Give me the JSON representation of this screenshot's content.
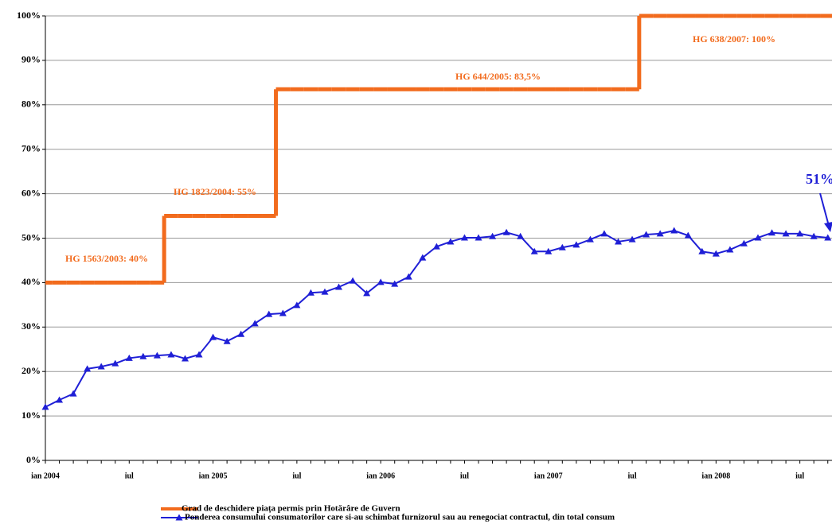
{
  "chart_data": {
    "type": "line",
    "categories": [
      "ian 2004",
      null,
      null,
      null,
      null,
      null,
      "iul",
      null,
      null,
      null,
      null,
      null,
      "ian 2005",
      null,
      null,
      null,
      null,
      null,
      "iul",
      null,
      null,
      null,
      null,
      null,
      "ian 2006",
      null,
      null,
      null,
      null,
      null,
      "iul",
      null,
      null,
      null,
      null,
      null,
      "ian 2007",
      null,
      null,
      null,
      null,
      null,
      "iul",
      null,
      null,
      null,
      null,
      null,
      "ian 2008",
      null,
      null,
      null,
      null,
      null,
      "iul",
      null,
      null
    ],
    "series": [
      {
        "name": "Grad de deschidere piața permis prin Hotărâre de Guvern",
        "color": "#f26b1d",
        "step": true,
        "values": [
          40,
          40,
          40,
          40,
          40,
          40,
          40,
          40,
          40,
          55,
          55,
          55,
          55,
          55,
          55,
          55,
          55,
          83.5,
          83.5,
          83.5,
          83.5,
          83.5,
          83.5,
          83.5,
          83.5,
          83.5,
          83.5,
          83.5,
          83.5,
          83.5,
          83.5,
          83.5,
          83.5,
          83.5,
          83.5,
          83.5,
          83.5,
          83.5,
          83.5,
          83.5,
          83.5,
          83.5,
          83.5,
          100,
          100,
          100,
          100,
          100,
          100,
          100,
          100,
          100,
          100,
          100,
          100,
          100,
          100
        ]
      },
      {
        "name": "Ponderea consumului consumatorilor care si-au schimbat furnizorul sau au renegociat contractul, din total consum",
        "color": "#1f1fd6",
        "marker": "triangle",
        "values": [
          12,
          13.6,
          15,
          20.6,
          21.1,
          21.8,
          23,
          23.4,
          23.6,
          23.8,
          22.9,
          23.8,
          27.7,
          26.8,
          28.4,
          30.8,
          32.9,
          33.1,
          34.9,
          37.7,
          37.9,
          39,
          40.4,
          37.6,
          40.1,
          39.7,
          41.3,
          45.6,
          48.1,
          49.2,
          50.1,
          50.1,
          50.4,
          51.3,
          50.4,
          47,
          47,
          47.9,
          48.5,
          49.7,
          51,
          49.2,
          49.7,
          50.8,
          51,
          51.7,
          50.6,
          47,
          46.5,
          47.4,
          48.8,
          50.1,
          51.2,
          51,
          51,
          50.4,
          50.1
        ]
      }
    ],
    "ylim": [
      0,
      100
    ],
    "yticks": [
      {
        "value": 0,
        "label": "0%"
      },
      {
        "value": 10,
        "label": "10%"
      },
      {
        "value": 20,
        "label": "20%"
      },
      {
        "value": 30,
        "label": "30%"
      },
      {
        "value": 40,
        "label": "40%"
      },
      {
        "value": 50,
        "label": "50%"
      },
      {
        "value": 60,
        "label": "60%"
      },
      {
        "value": 70,
        "label": "70%"
      },
      {
        "value": 80,
        "label": "80%"
      },
      {
        "value": 90,
        "label": "90%"
      },
      {
        "value": 100,
        "label": "100%"
      }
    ],
    "grid": true,
    "legend": "bottom",
    "annotations": [
      "HG 1563/2003:  40%",
      "HG 1823/2004:  55%",
      "HG 644/2005:  83,5%",
      "HG 638/2007: 100%",
      "51%"
    ]
  }
}
